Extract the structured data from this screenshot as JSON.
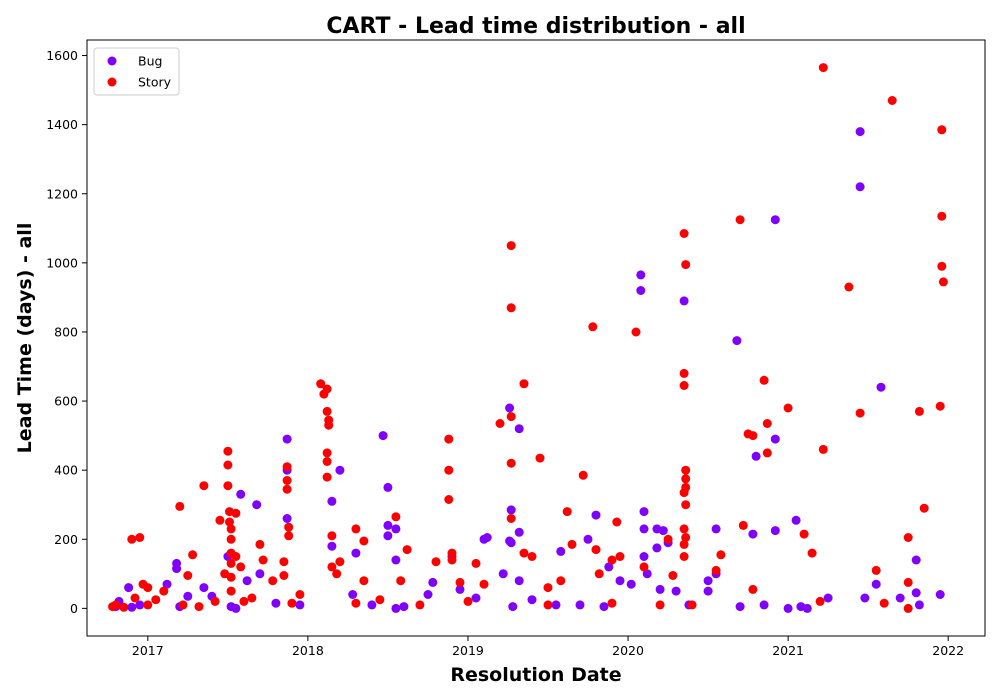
{
  "chart_data": {
    "type": "scatter",
    "title": "CART - Lead time distribution - all",
    "xlabel": "Resolution Date",
    "ylabel": "Lead Time (days) - all",
    "xlim": [
      2016.62,
      2022.23
    ],
    "ylim": [
      -80,
      1645
    ],
    "x_ticks": [
      "2017",
      "2018",
      "2019",
      "2020",
      "2021",
      "2022"
    ],
    "y_ticks": [
      0,
      200,
      400,
      600,
      800,
      1000,
      1200,
      1400,
      1600
    ],
    "grid": false,
    "legend_position": "top-left",
    "series": [
      {
        "name": "Bug",
        "color": "#7f00ff",
        "points": [
          [
            2016.8,
            5
          ],
          [
            2016.82,
            20
          ],
          [
            2016.88,
            60
          ],
          [
            2016.9,
            3
          ],
          [
            2016.95,
            10
          ],
          [
            2017.12,
            70
          ],
          [
            2017.18,
            130
          ],
          [
            2017.18,
            115
          ],
          [
            2017.2,
            5
          ],
          [
            2017.25,
            35
          ],
          [
            2017.35,
            60
          ],
          [
            2017.4,
            35
          ],
          [
            2017.5,
            150
          ],
          [
            2017.52,
            5
          ],
          [
            2017.55,
            0
          ],
          [
            2017.58,
            330
          ],
          [
            2017.62,
            80
          ],
          [
            2017.68,
            300
          ],
          [
            2017.7,
            100
          ],
          [
            2017.8,
            15
          ],
          [
            2017.87,
            490
          ],
          [
            2017.87,
            400
          ],
          [
            2017.87,
            260
          ],
          [
            2017.95,
            10
          ],
          [
            2018.15,
            310
          ],
          [
            2018.15,
            180
          ],
          [
            2018.2,
            400
          ],
          [
            2018.28,
            40
          ],
          [
            2018.3,
            160
          ],
          [
            2018.4,
            10
          ],
          [
            2018.47,
            500
          ],
          [
            2018.5,
            350
          ],
          [
            2018.5,
            240
          ],
          [
            2018.5,
            210
          ],
          [
            2018.55,
            230
          ],
          [
            2018.55,
            140
          ],
          [
            2018.55,
            0
          ],
          [
            2018.6,
            5
          ],
          [
            2018.75,
            40
          ],
          [
            2018.78,
            75
          ],
          [
            2018.9,
            150
          ],
          [
            2018.95,
            55
          ],
          [
            2019.05,
            30
          ],
          [
            2019.1,
            200
          ],
          [
            2019.12,
            205
          ],
          [
            2019.22,
            100
          ],
          [
            2019.26,
            580
          ],
          [
            2019.27,
            285
          ],
          [
            2019.26,
            195
          ],
          [
            2019.27,
            190
          ],
          [
            2019.28,
            5
          ],
          [
            2019.32,
            520
          ],
          [
            2019.32,
            220
          ],
          [
            2019.32,
            80
          ],
          [
            2019.4,
            25
          ],
          [
            2019.55,
            10
          ],
          [
            2019.58,
            165
          ],
          [
            2019.7,
            10
          ],
          [
            2019.75,
            200
          ],
          [
            2019.8,
            270
          ],
          [
            2019.85,
            5
          ],
          [
            2019.88,
            120
          ],
          [
            2019.95,
            80
          ],
          [
            2020.02,
            70
          ],
          [
            2020.08,
            965
          ],
          [
            2020.08,
            920
          ],
          [
            2020.1,
            280
          ],
          [
            2020.1,
            230
          ],
          [
            2020.1,
            150
          ],
          [
            2020.12,
            100
          ],
          [
            2020.18,
            230
          ],
          [
            2020.18,
            175
          ],
          [
            2020.2,
            55
          ],
          [
            2020.22,
            225
          ],
          [
            2020.25,
            190
          ],
          [
            2020.3,
            50
          ],
          [
            2020.35,
            890
          ],
          [
            2020.38,
            10
          ],
          [
            2020.5,
            80
          ],
          [
            2020.5,
            50
          ],
          [
            2020.55,
            230
          ],
          [
            2020.55,
            100
          ],
          [
            2020.68,
            775
          ],
          [
            2020.7,
            5
          ],
          [
            2020.78,
            215
          ],
          [
            2020.8,
            440
          ],
          [
            2020.85,
            10
          ],
          [
            2020.92,
            1125
          ],
          [
            2020.92,
            490
          ],
          [
            2020.92,
            225
          ],
          [
            2021.0,
            0
          ],
          [
            2021.05,
            255
          ],
          [
            2021.08,
            5
          ],
          [
            2021.12,
            0
          ],
          [
            2021.25,
            30
          ],
          [
            2021.45,
            1380
          ],
          [
            2021.45,
            1220
          ],
          [
            2021.48,
            30
          ],
          [
            2021.55,
            70
          ],
          [
            2021.58,
            640
          ],
          [
            2021.7,
            30
          ],
          [
            2021.8,
            140
          ],
          [
            2021.8,
            45
          ],
          [
            2021.82,
            10
          ],
          [
            2021.95,
            40
          ]
        ]
      },
      {
        "name": "Story",
        "color": "#ff0000",
        "points": [
          [
            2016.78,
            5
          ],
          [
            2016.8,
            10
          ],
          [
            2016.85,
            3
          ],
          [
            2016.9,
            200
          ],
          [
            2016.95,
            205
          ],
          [
            2016.92,
            30
          ],
          [
            2016.97,
            70
          ],
          [
            2017.0,
            60
          ],
          [
            2017.05,
            25
          ],
          [
            2017.1,
            50
          ],
          [
            2017.2,
            295
          ],
          [
            2017.22,
            10
          ],
          [
            2017.25,
            95
          ],
          [
            2017.28,
            155
          ],
          [
            2017.32,
            5
          ],
          [
            2017.35,
            355
          ],
          [
            2017.42,
            20
          ],
          [
            2017.45,
            255
          ],
          [
            2017.48,
            100
          ],
          [
            2017.5,
            455
          ],
          [
            2017.5,
            415
          ],
          [
            2017.5,
            355
          ],
          [
            2017.51,
            280
          ],
          [
            2017.51,
            250
          ],
          [
            2017.52,
            230
          ],
          [
            2017.52,
            200
          ],
          [
            2017.52,
            160
          ],
          [
            2017.52,
            130
          ],
          [
            2017.52,
            90
          ],
          [
            2017.52,
            50
          ],
          [
            2017.55,
            275
          ],
          [
            2017.55,
            150
          ],
          [
            2017.58,
            120
          ],
          [
            2017.65,
            30
          ],
          [
            2017.7,
            185
          ],
          [
            2017.72,
            140
          ],
          [
            2017.78,
            80
          ],
          [
            2017.85,
            135
          ],
          [
            2017.85,
            95
          ],
          [
            2017.87,
            410
          ],
          [
            2017.87,
            370
          ],
          [
            2017.87,
            345
          ],
          [
            2017.88,
            235
          ],
          [
            2017.88,
            210
          ],
          [
            2017.95,
            40
          ],
          [
            2018.08,
            650
          ],
          [
            2018.1,
            620
          ],
          [
            2018.12,
            635
          ],
          [
            2018.12,
            570
          ],
          [
            2018.13,
            545
          ],
          [
            2018.13,
            530
          ],
          [
            2018.12,
            450
          ],
          [
            2018.12,
            425
          ],
          [
            2018.12,
            380
          ],
          [
            2018.15,
            210
          ],
          [
            2018.15,
            120
          ],
          [
            2018.18,
            100
          ],
          [
            2018.2,
            135
          ],
          [
            2018.3,
            230
          ],
          [
            2018.35,
            195
          ],
          [
            2018.35,
            80
          ],
          [
            2018.45,
            25
          ],
          [
            2018.55,
            265
          ],
          [
            2018.58,
            80
          ],
          [
            2018.62,
            170
          ],
          [
            2018.8,
            135
          ],
          [
            2018.88,
            490
          ],
          [
            2018.88,
            400
          ],
          [
            2018.88,
            315
          ],
          [
            2018.9,
            160
          ],
          [
            2018.9,
            140
          ],
          [
            2018.95,
            75
          ],
          [
            2019.05,
            130
          ],
          [
            2019.1,
            70
          ],
          [
            2019.2,
            535
          ],
          [
            2019.27,
            1050
          ],
          [
            2019.27,
            870
          ],
          [
            2019.27,
            555
          ],
          [
            2019.27,
            420
          ],
          [
            2019.27,
            260
          ],
          [
            2019.35,
            650
          ],
          [
            2019.35,
            160
          ],
          [
            2019.4,
            150
          ],
          [
            2019.45,
            435
          ],
          [
            2019.5,
            60
          ],
          [
            2019.58,
            80
          ],
          [
            2019.62,
            280
          ],
          [
            2019.65,
            185
          ],
          [
            2019.72,
            385
          ],
          [
            2019.78,
            815
          ],
          [
            2019.8,
            170
          ],
          [
            2019.82,
            100
          ],
          [
            2019.9,
            140
          ],
          [
            2019.93,
            250
          ],
          [
            2019.95,
            150
          ],
          [
            2020.05,
            800
          ],
          [
            2020.1,
            120
          ],
          [
            2020.25,
            200
          ],
          [
            2020.28,
            95
          ],
          [
            2020.35,
            1085
          ],
          [
            2020.36,
            995
          ],
          [
            2020.35,
            680
          ],
          [
            2020.35,
            645
          ],
          [
            2020.36,
            400
          ],
          [
            2020.36,
            375
          ],
          [
            2020.36,
            350
          ],
          [
            2020.35,
            335
          ],
          [
            2020.36,
            300
          ],
          [
            2020.35,
            230
          ],
          [
            2020.36,
            205
          ],
          [
            2020.35,
            185
          ],
          [
            2020.35,
            150
          ],
          [
            2020.55,
            110
          ],
          [
            2020.58,
            155
          ],
          [
            2020.7,
            1125
          ],
          [
            2020.72,
            240
          ],
          [
            2020.75,
            505
          ],
          [
            2020.78,
            500
          ],
          [
            2020.78,
            55
          ],
          [
            2020.85,
            660
          ],
          [
            2020.87,
            535
          ],
          [
            2020.87,
            450
          ],
          [
            2021.0,
            580
          ],
          [
            2021.1,
            215
          ],
          [
            2021.15,
            160
          ],
          [
            2021.22,
            1565
          ],
          [
            2021.22,
            460
          ],
          [
            2021.38,
            930
          ],
          [
            2021.45,
            565
          ],
          [
            2021.55,
            110
          ],
          [
            2021.65,
            1470
          ],
          [
            2021.75,
            205
          ],
          [
            2021.75,
            75
          ],
          [
            2021.82,
            570
          ],
          [
            2021.85,
            290
          ],
          [
            2021.95,
            585
          ],
          [
            2021.96,
            1385
          ],
          [
            2021.96,
            1135
          ],
          [
            2021.96,
            990
          ],
          [
            2021.97,
            945
          ],
          [
            2017.0,
            10
          ],
          [
            2017.6,
            20
          ],
          [
            2017.9,
            15
          ],
          [
            2018.3,
            15
          ],
          [
            2018.7,
            10
          ],
          [
            2019.0,
            20
          ],
          [
            2019.5,
            10
          ],
          [
            2019.9,
            15
          ],
          [
            2020.2,
            10
          ],
          [
            2020.4,
            10
          ],
          [
            2021.2,
            20
          ],
          [
            2021.6,
            15
          ],
          [
            2021.75,
            0
          ]
        ]
      }
    ]
  }
}
